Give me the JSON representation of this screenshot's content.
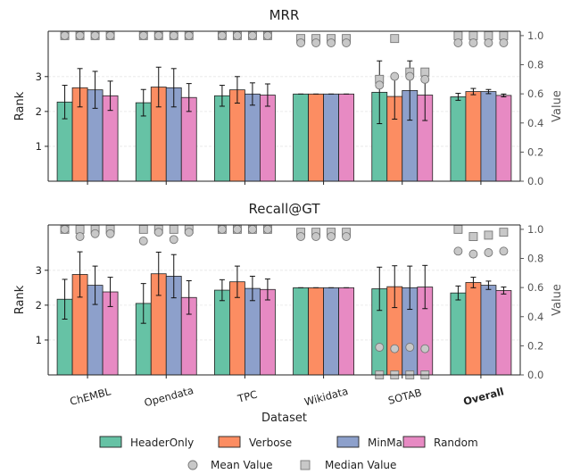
{
  "chart_data": [
    {
      "type": "bar",
      "title": "MRR",
      "ylabel": "Rank",
      "ylabel_right": "Value",
      "ylim": [
        0,
        4.3
      ],
      "ylim_right": [
        0.0,
        1.03
      ],
      "yticks": [
        1,
        2,
        3
      ],
      "yticks_right": [
        "0.0",
        "0.2",
        "0.4",
        "0.6",
        "0.8",
        "1.0"
      ],
      "categories": [
        "ChEMBL",
        "Opendata",
        "TPC",
        "Wikidata",
        "SOTAB",
        "Overall"
      ],
      "series": [
        {
          "name": "HeaderOnly",
          "values": [
            2.27,
            2.25,
            2.45,
            2.5,
            2.55,
            2.42
          ],
          "err": [
            0.48,
            0.38,
            0.3,
            0.0,
            0.9,
            0.1
          ]
        },
        {
          "name": "Verbose",
          "values": [
            2.68,
            2.7,
            2.62,
            2.5,
            2.43,
            2.57
          ],
          "err": [
            0.55,
            0.57,
            0.38,
            0.0,
            0.65,
            0.09
          ]
        },
        {
          "name": "MinMax",
          "values": [
            2.62,
            2.68,
            2.5,
            2.5,
            2.6,
            2.57
          ],
          "err": [
            0.53,
            0.55,
            0.32,
            0.0,
            0.85,
            0.06
          ]
        },
        {
          "name": "Random",
          "values": [
            2.45,
            2.4,
            2.47,
            2.5,
            2.47,
            2.46
          ],
          "err": [
            0.42,
            0.4,
            0.32,
            0.0,
            0.73,
            0.04
          ]
        }
      ],
      "mean_value": [
        [
          1.0,
          1.0,
          1.0,
          1.0
        ],
        [
          1.0,
          1.0,
          1.0,
          1.0
        ],
        [
          1.0,
          1.0,
          1.0,
          1.0
        ],
        [
          0.95,
          0.95,
          0.95,
          0.95
        ],
        [
          0.66,
          0.72,
          0.72,
          0.7
        ],
        [
          0.95,
          0.95,
          0.95,
          0.95
        ]
      ],
      "median_value": [
        [
          1.0,
          1.0,
          1.0,
          1.0
        ],
        [
          1.0,
          1.0,
          1.0,
          1.0
        ],
        [
          1.0,
          1.0,
          1.0,
          1.0
        ],
        [
          0.98,
          0.98,
          0.98,
          0.98
        ],
        [
          0.7,
          0.98,
          0.75,
          0.75
        ],
        [
          1.0,
          1.0,
          1.0,
          1.0
        ]
      ]
    },
    {
      "type": "bar",
      "title": "Recall@GT",
      "ylabel": "Rank",
      "ylabel_right": "Value",
      "xlabel": "Dataset",
      "ylim": [
        0,
        4.3
      ],
      "ylim_right": [
        0.0,
        1.03
      ],
      "yticks": [
        1,
        2,
        3
      ],
      "yticks_right": [
        "0.0",
        "0.2",
        "0.4",
        "0.6",
        "0.8",
        "1.0"
      ],
      "categories": [
        "ChEMBL",
        "Opendata",
        "TPC",
        "Wikidata",
        "SOTAB",
        "Overall"
      ],
      "series": [
        {
          "name": "HeaderOnly",
          "values": [
            2.17,
            2.05,
            2.43,
            2.5,
            2.47,
            2.35
          ],
          "err": [
            0.57,
            0.57,
            0.3,
            0.0,
            0.62,
            0.2
          ]
        },
        {
          "name": "Verbose",
          "values": [
            2.88,
            2.9,
            2.67,
            2.5,
            2.53,
            2.65
          ],
          "err": [
            0.65,
            0.62,
            0.45,
            0.0,
            0.6,
            0.15
          ]
        },
        {
          "name": "MinMax",
          "values": [
            2.57,
            2.83,
            2.48,
            2.5,
            2.5,
            2.57
          ],
          "err": [
            0.55,
            0.62,
            0.35,
            0.0,
            0.62,
            0.12
          ]
        },
        {
          "name": "Random",
          "values": [
            2.38,
            2.22,
            2.45,
            2.5,
            2.52,
            2.42
          ],
          "err": [
            0.42,
            0.48,
            0.3,
            0.0,
            0.62,
            0.1
          ]
        }
      ],
      "mean_value": [
        [
          1.0,
          0.95,
          0.97,
          0.97
        ],
        [
          0.92,
          0.98,
          0.93,
          0.98
        ],
        [
          1.0,
          1.0,
          1.0,
          1.0
        ],
        [
          0.95,
          0.95,
          0.95,
          0.95
        ],
        [
          0.19,
          0.18,
          0.19,
          0.18
        ],
        [
          0.85,
          0.83,
          0.84,
          0.85
        ]
      ],
      "median_value": [
        [
          1.0,
          1.0,
          1.0,
          1.0
        ],
        [
          1.0,
          1.0,
          1.0,
          1.0
        ],
        [
          1.0,
          1.0,
          1.0,
          1.0
        ],
        [
          0.98,
          0.98,
          0.98,
          0.98
        ],
        [
          0.0,
          0.0,
          0.0,
          0.0
        ],
        [
          1.0,
          0.95,
          0.96,
          0.98
        ]
      ]
    }
  ],
  "bold_category": "Overall",
  "legend": {
    "series": [
      {
        "name": "HeaderOnly",
        "color": "#66c2a5"
      },
      {
        "name": "Verbose",
        "color": "#fc8d62"
      },
      {
        "name": "MinMax",
        "color": "#8da0cb"
      },
      {
        "name": "Random",
        "color": "#e78ac3"
      }
    ],
    "markers": [
      {
        "name": "Mean Value",
        "shape": "circle"
      },
      {
        "name": "Median Value",
        "shape": "square"
      }
    ]
  },
  "colors": {
    "bar_edge": "#222222",
    "marker_fill": "#c8c8c8",
    "marker_edge": "#777777",
    "grid": "#e6e6e6",
    "right_axis": "#555555"
  }
}
